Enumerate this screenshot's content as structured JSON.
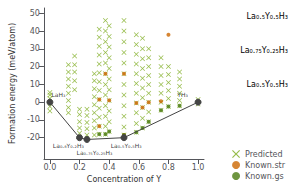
{
  "chart_data": {
    "type": "scatter",
    "xlabel": "Concentration of Y",
    "ylabel": "Formation energy (meV/atom)",
    "xlim": [
      -0.04,
      1.04
    ],
    "ylim": [
      -32,
      53
    ],
    "xticks": [
      {
        "value": 0.0,
        "label": "0.0"
      },
      0.2,
      0.4,
      0.6,
      0.8,
      {
        "value": 1.0,
        "label": "1.0"
      }
    ],
    "yticks": [
      -20,
      -10,
      0,
      10,
      20,
      30,
      40,
      50
    ],
    "grid": false,
    "legend": "lower right",
    "series": [
      {
        "name": "Predicted",
        "type": "scatter",
        "marker": "x",
        "color": "#7aaa1a",
        "values": [
          [
            0.0,
            5.5
          ],
          [
            0.0,
            4.0
          ],
          [
            0.0,
            2.0
          ],
          [
            0.0,
            -2.5
          ],
          [
            0.0,
            -5.0
          ],
          [
            0.125,
            21.0
          ],
          [
            0.125,
            17.0
          ],
          [
            0.125,
            13.0
          ],
          [
            0.125,
            9.0
          ],
          [
            0.125,
            5.0
          ],
          [
            0.125,
            1.0
          ],
          [
            0.125,
            -3.0
          ],
          [
            0.125,
            -6.0
          ],
          [
            0.1667,
            26.0
          ],
          [
            0.1667,
            21.0
          ],
          [
            0.1667,
            17.0
          ],
          [
            0.1667,
            12.0
          ],
          [
            0.1667,
            7.0
          ],
          [
            0.2,
            -4.0
          ],
          [
            0.2,
            -7.0
          ],
          [
            0.2,
            -11.0
          ],
          [
            0.2,
            -14.5
          ],
          [
            0.2,
            -17.5
          ],
          [
            0.25,
            -4.0
          ],
          [
            0.25,
            -7.5
          ],
          [
            0.25,
            -11.5
          ],
          [
            0.25,
            -15.0
          ],
          [
            0.25,
            -18.5
          ],
          [
            0.3,
            16.0
          ],
          [
            0.3,
            12.0
          ],
          [
            0.3,
            7.5
          ],
          [
            0.3,
            3.0
          ],
          [
            0.3,
            -1.5
          ],
          [
            0.3,
            -6.0
          ],
          [
            0.3,
            -10.5
          ],
          [
            0.3,
            -14.5
          ],
          [
            0.3,
            -18.5
          ],
          [
            0.333,
            41.0
          ],
          [
            0.333,
            36.5
          ],
          [
            0.333,
            31.5
          ],
          [
            0.333,
            26.5
          ],
          [
            0.333,
            21.5
          ],
          [
            0.333,
            16.5
          ],
          [
            0.333,
            11.5
          ],
          [
            0.333,
            6.5
          ],
          [
            0.333,
            1.5
          ],
          [
            0.333,
            -3.5
          ],
          [
            0.333,
            -8.5
          ],
          [
            0.333,
            -13.5
          ],
          [
            0.333,
            -18.0
          ],
          [
            0.375,
            46.0
          ],
          [
            0.375,
            40.0
          ],
          [
            0.375,
            34.0
          ],
          [
            0.375,
            28.0
          ],
          [
            0.375,
            22.0
          ],
          [
            0.375,
            16.0
          ],
          [
            0.375,
            10.0
          ],
          [
            0.375,
            4.0
          ],
          [
            0.375,
            -2.0
          ],
          [
            0.375,
            -8.0
          ],
          [
            0.375,
            -13.5
          ],
          [
            0.375,
            -18.0
          ],
          [
            0.4,
            43.0
          ],
          [
            0.4,
            37.0
          ],
          [
            0.4,
            31.0
          ],
          [
            0.4,
            25.0
          ],
          [
            0.4,
            19.0
          ],
          [
            0.4,
            13.0
          ],
          [
            0.4,
            7.0
          ],
          [
            0.4,
            1.0
          ],
          [
            0.4,
            -5.0
          ],
          [
            0.4,
            -11.0
          ],
          [
            0.4,
            -16.5
          ],
          [
            0.5,
            46.0
          ],
          [
            0.5,
            40.0
          ],
          [
            0.5,
            34.0
          ],
          [
            0.5,
            28.0
          ],
          [
            0.5,
            22.0
          ],
          [
            0.5,
            16.0
          ],
          [
            0.5,
            10.0
          ],
          [
            0.5,
            4.0
          ],
          [
            0.5,
            -2.0
          ],
          [
            0.5,
            -8.0
          ],
          [
            0.5,
            -14.0
          ],
          [
            0.5,
            -18.5
          ],
          [
            0.5833,
            38.0
          ],
          [
            0.5833,
            32.5
          ],
          [
            0.5833,
            27.0
          ],
          [
            0.5833,
            21.5
          ],
          [
            0.5833,
            16.0
          ],
          [
            0.5833,
            10.5
          ],
          [
            0.5833,
            5.0
          ],
          [
            0.5833,
            -0.5
          ],
          [
            0.5833,
            -6.0
          ],
          [
            0.5833,
            -12.0
          ],
          [
            0.5833,
            -17.0
          ],
          [
            0.625,
            36.0
          ],
          [
            0.625,
            30.0
          ],
          [
            0.625,
            24.5
          ],
          [
            0.625,
            19.0
          ],
          [
            0.625,
            13.5
          ],
          [
            0.625,
            8.0
          ],
          [
            0.625,
            2.5
          ],
          [
            0.625,
            -3.0
          ],
          [
            0.625,
            -9.0
          ],
          [
            0.625,
            -14.5
          ],
          [
            0.6667,
            30.0
          ],
          [
            0.6667,
            25.0
          ],
          [
            0.6667,
            20.0
          ],
          [
            0.6667,
            15.0
          ],
          [
            0.6667,
            10.0
          ],
          [
            0.6667,
            5.0
          ],
          [
            0.6667,
            0.0
          ],
          [
            0.6667,
            -5.5
          ],
          [
            0.6667,
            -11.0
          ],
          [
            0.75,
            25.0
          ],
          [
            0.75,
            20.0
          ],
          [
            0.75,
            15.0
          ],
          [
            0.75,
            10.0
          ],
          [
            0.75,
            5.0
          ],
          [
            0.75,
            0.0
          ],
          [
            0.75,
            -4.5
          ],
          [
            0.8,
            20.0
          ],
          [
            0.8,
            15.5
          ],
          [
            0.8,
            11.0
          ],
          [
            0.8,
            6.5
          ],
          [
            0.8,
            2.0
          ],
          [
            0.8,
            -2.5
          ],
          [
            0.875,
            17.0
          ],
          [
            0.875,
            13.0
          ],
          [
            0.875,
            9.0
          ],
          [
            0.875,
            5.0
          ],
          [
            0.875,
            1.0
          ],
          [
            0.875,
            -2.0
          ],
          [
            1.0,
            1.5
          ],
          [
            1.0,
            -1.0
          ]
        ]
      },
      {
        "name": "Known.str",
        "type": "scatter",
        "marker": "o",
        "color": "#cc6600",
        "values": [
          [
            0.2,
            -20.0
          ],
          [
            0.25,
            -21.0
          ],
          [
            0.333,
            1.5
          ],
          [
            0.333,
            -13.5
          ],
          [
            0.375,
            16.0
          ],
          [
            0.4,
            1.0
          ],
          [
            0.5,
            -18.5
          ],
          [
            0.5,
            16.0
          ],
          [
            0.5833,
            -0.5
          ],
          [
            0.625,
            -3.0
          ],
          [
            0.6667,
            0.0
          ],
          [
            0.75,
            0.5
          ],
          [
            0.8,
            38.0
          ]
        ]
      },
      {
        "name": "Known.gs",
        "type": "scatter",
        "marker": "o",
        "color": "#4a7a10",
        "values": [
          [
            0.0,
            0.0
          ],
          [
            0.2,
            -20.0
          ],
          [
            0.25,
            -21.0
          ],
          [
            0.333,
            -18.0
          ],
          [
            0.375,
            -18.0
          ],
          [
            0.4,
            -16.5
          ],
          [
            0.5,
            -18.5
          ],
          [
            0.5833,
            -17.0
          ],
          [
            0.625,
            -14.5
          ],
          [
            0.6667,
            -11.0
          ],
          [
            0.75,
            -4.5
          ],
          [
            0.8,
            -2.5
          ],
          [
            0.875,
            -2.0
          ],
          [
            1.0,
            0.0
          ]
        ]
      },
      {
        "type": "line",
        "marker": "o",
        "color": "#444444",
        "values": [
          [
            0.0,
            0.0
          ],
          [
            0.2,
            -20.0
          ],
          [
            0.25,
            -21.0
          ],
          [
            0.5,
            -20.0
          ],
          [
            1.0,
            0.0
          ]
        ]
      }
    ],
    "annotations": [
      {
        "text": "LaH₃",
        "x": 0.01,
        "y": 4.5
      },
      {
        "text": "YH₃",
        "x": 0.86,
        "y": 4.5
      },
      {
        "text": "La₀.₈Y₀.₂H₃",
        "x": 0.02,
        "y": -24.5
      },
      {
        "text": "La₀.₇₅Y₀.₂₅H₃",
        "x": 0.18,
        "y": -28.5
      },
      {
        "text": "La₀.₅Y₀.₅H₃",
        "x": 0.41,
        "y": -24.5
      }
    ],
    "side_labels": [
      "La₀.₅Y₀.₅H₃",
      "La₀.₇₅Y₀.₂₅H₃",
      "La₀.₅Y₀.₅H₃"
    ]
  }
}
